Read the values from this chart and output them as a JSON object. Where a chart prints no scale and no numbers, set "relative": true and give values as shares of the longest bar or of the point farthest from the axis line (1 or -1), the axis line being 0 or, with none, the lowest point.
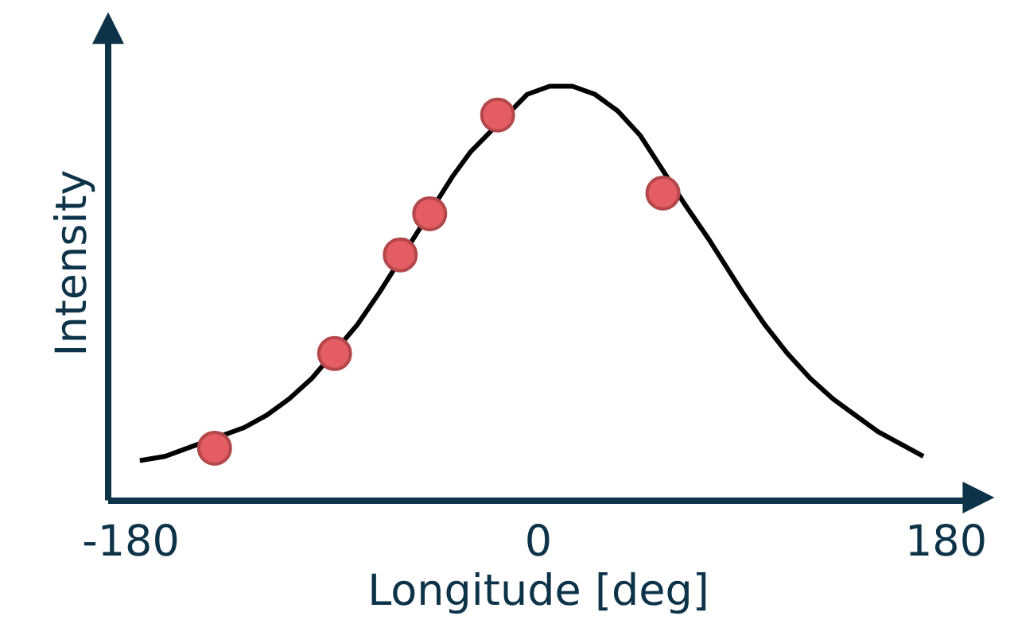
{
  "chart_data": {
    "type": "line",
    "xlabel": "Longitude [deg]",
    "ylabel": "Intensity",
    "relative": true,
    "xlim": [
      -190,
      190
    ],
    "xticks": [
      -180,
      0,
      180
    ],
    "tick_labels": "x",
    "series": [
      {
        "color": "#000000",
        "marker": "none",
        "line_style": "solid",
        "x": [
          -176,
          -165,
          -155,
          -130,
          -120,
          -110,
          -100,
          -80,
          -70,
          -38,
          -30,
          -5,
          5,
          15,
          25,
          35,
          45,
          65,
          75,
          90,
          100,
          110,
          120,
          130,
          140,
          150,
          160,
          170
        ],
        "values": [
          0.09,
          0.1,
          0.12,
          0.17,
          0.2,
          0.24,
          0.29,
          0.42,
          0.5,
          0.78,
          0.84,
          0.98,
          1.0,
          1.0,
          0.98,
          0.94,
          0.88,
          0.71,
          0.63,
          0.5,
          0.42,
          0.35,
          0.29,
          0.24,
          0.2,
          0.16,
          0.13,
          0.1
        ]
      },
      {
        "type": "scatter",
        "color": "#e35d62",
        "marker": "circle",
        "x": [
          -143,
          -90,
          -61,
          -48,
          -18,
          55
        ],
        "values": [
          0.12,
          0.35,
          0.59,
          0.69,
          0.93,
          0.74
        ]
      }
    ]
  }
}
